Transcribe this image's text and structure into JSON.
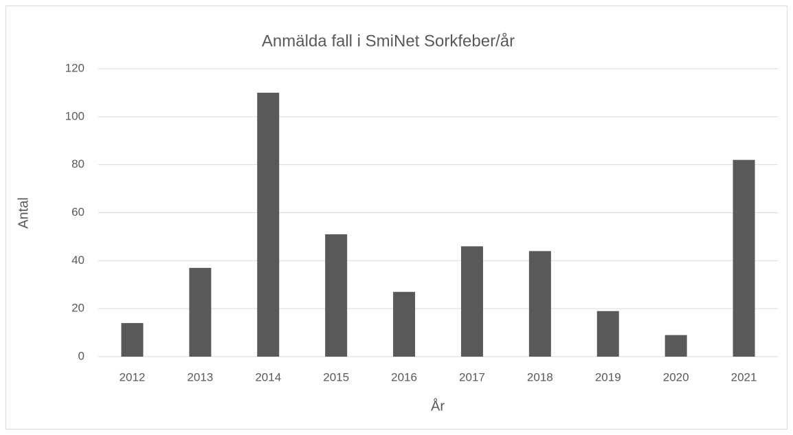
{
  "chart_data": {
    "type": "bar",
    "title": "Anmälda fall i SmiNet  Sorkfeber/år",
    "x_label": "År",
    "y_label": "Antal",
    "categories": [
      "2012",
      "2013",
      "2014",
      "2015",
      "2016",
      "2017",
      "2018",
      "2019",
      "2020",
      "2021"
    ],
    "values": [
      14,
      37,
      110,
      51,
      27,
      46,
      44,
      19,
      9,
      82
    ],
    "color": "#595959",
    "ylim": [
      0,
      120
    ],
    "yticks": [
      0,
      20,
      40,
      60,
      80,
      100,
      120
    ],
    "grid": true
  }
}
